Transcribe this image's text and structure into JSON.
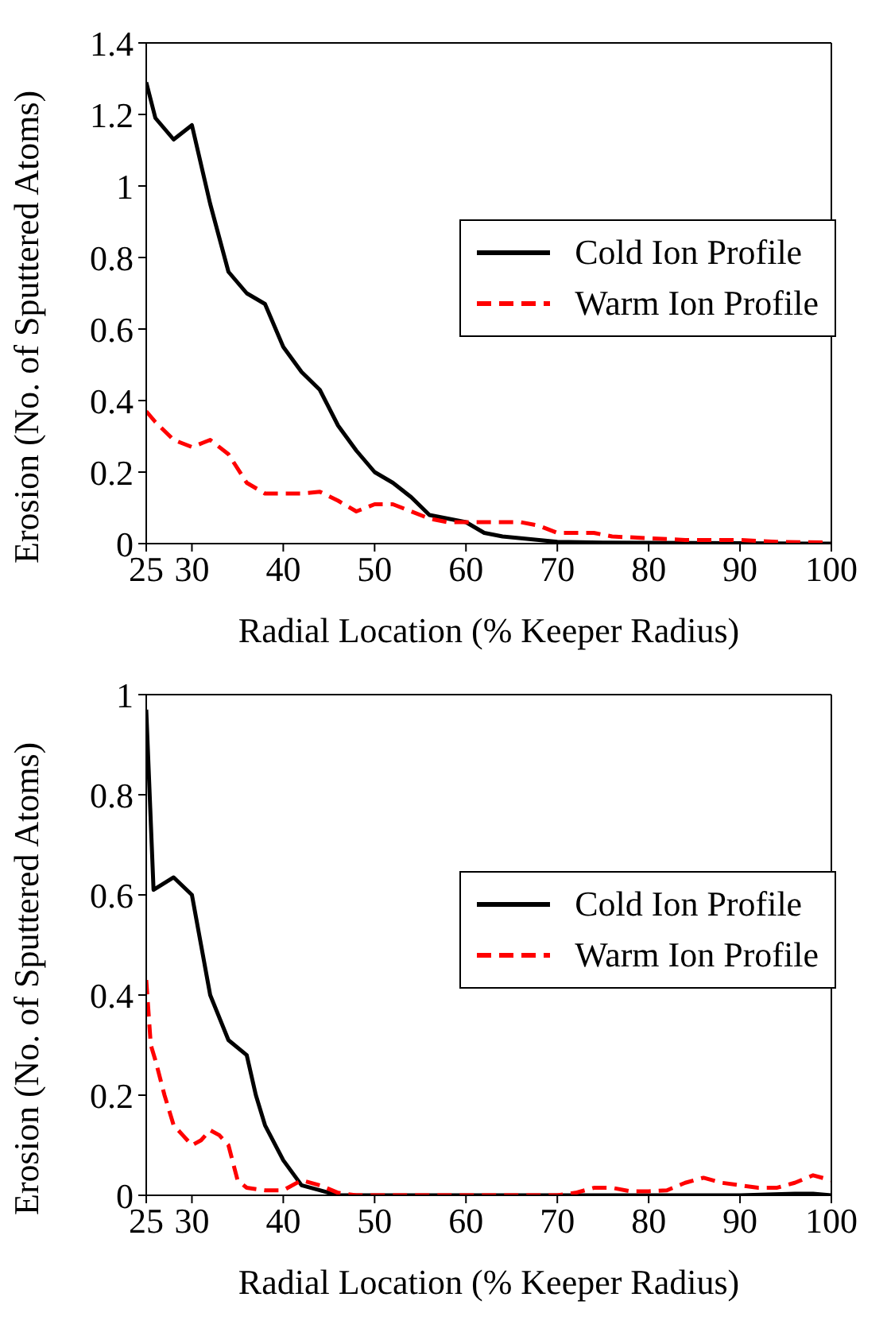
{
  "chart_data": [
    {
      "type": "line",
      "xlabel": "Radial Location (% Keeper Radius)",
      "ylabel": "Erosion (No. of Sputtered Atoms)",
      "xlim": [
        25,
        100
      ],
      "xticks": [
        25,
        30,
        40,
        50,
        60,
        70,
        80,
        90,
        100
      ],
      "ylim": [
        0,
        1.4
      ],
      "yticks": [
        0,
        0.2,
        0.4,
        0.6,
        0.8,
        1,
        1.2,
        1.4
      ],
      "legend": "right",
      "series": [
        {
          "name": "Cold Ion Profile",
          "color": "#000000",
          "line_style": "solid",
          "x": [
            25,
            26,
            28,
            30,
            32,
            34,
            36,
            38,
            40,
            42,
            44,
            46,
            48,
            50,
            52,
            54,
            56,
            58,
            60,
            62,
            64,
            66,
            68,
            70,
            75,
            80,
            90,
            100
          ],
          "values": [
            1.29,
            1.19,
            1.13,
            1.17,
            0.95,
            0.76,
            0.7,
            0.67,
            0.55,
            0.48,
            0.43,
            0.33,
            0.26,
            0.2,
            0.17,
            0.13,
            0.08,
            0.07,
            0.06,
            0.03,
            0.02,
            0.015,
            0.01,
            0.005,
            0.003,
            0.002,
            0.001,
            0
          ]
        },
        {
          "name": "Warm Ion Profile",
          "color": "#ff0000",
          "line_style": "dashed",
          "x": [
            25,
            26,
            28,
            30,
            32,
            34,
            36,
            38,
            40,
            42,
            44,
            46,
            48,
            50,
            52,
            54,
            56,
            58,
            60,
            62,
            64,
            66,
            68,
            70,
            72,
            74,
            76,
            80,
            84,
            90,
            94,
            100
          ],
          "values": [
            0.37,
            0.34,
            0.29,
            0.27,
            0.29,
            0.25,
            0.17,
            0.14,
            0.14,
            0.14,
            0.145,
            0.12,
            0.09,
            0.11,
            0.11,
            0.09,
            0.07,
            0.06,
            0.06,
            0.06,
            0.06,
            0.06,
            0.05,
            0.03,
            0.03,
            0.03,
            0.02,
            0.015,
            0.01,
            0.01,
            0.005,
            0.003
          ]
        }
      ]
    },
    {
      "type": "line",
      "xlabel": "Radial Location (% Keeper Radius)",
      "ylabel": "Erosion (No. of Sputtered Atoms)",
      "xlim": [
        25,
        100
      ],
      "xticks": [
        25,
        30,
        40,
        50,
        60,
        70,
        80,
        90,
        100
      ],
      "ylim": [
        0,
        1
      ],
      "yticks": [
        0,
        0.2,
        0.4,
        0.6,
        0.8,
        1
      ],
      "legend": "right",
      "series": [
        {
          "name": "Cold Ion Profile",
          "color": "#000000",
          "line_style": "solid",
          "x": [
            25,
            25.8,
            28,
            30,
            31,
            32,
            34,
            36,
            37,
            38,
            40,
            42,
            44,
            46,
            50,
            60,
            70,
            80,
            90,
            96,
            98,
            100
          ],
          "values": [
            0.97,
            0.61,
            0.635,
            0.6,
            0.5,
            0.4,
            0.31,
            0.28,
            0.2,
            0.14,
            0.07,
            0.02,
            0.01,
            0,
            0,
            0,
            0,
            0,
            0,
            0.003,
            0.003,
            0
          ]
        },
        {
          "name": "Warm Ion Profile",
          "color": "#ff0000",
          "line_style": "dashed",
          "x": [
            25,
            25.5,
            26,
            27,
            28,
            29,
            30,
            31,
            32,
            33,
            34,
            35,
            36,
            38,
            40,
            42,
            44,
            46,
            48,
            50,
            60,
            70,
            72,
            74,
            76,
            78,
            80,
            82,
            84,
            86,
            88,
            90,
            92,
            94,
            96,
            98,
            100
          ],
          "values": [
            0.43,
            0.3,
            0.27,
            0.2,
            0.14,
            0.12,
            0.1,
            0.11,
            0.13,
            0.12,
            0.1,
            0.03,
            0.015,
            0.01,
            0.01,
            0.03,
            0.02,
            0.005,
            0,
            0,
            0,
            0,
            0.005,
            0.015,
            0.015,
            0.008,
            0.008,
            0.01,
            0.025,
            0.035,
            0.025,
            0.02,
            0.015,
            0.015,
            0.025,
            0.04,
            0.03
          ]
        }
      ]
    }
  ]
}
